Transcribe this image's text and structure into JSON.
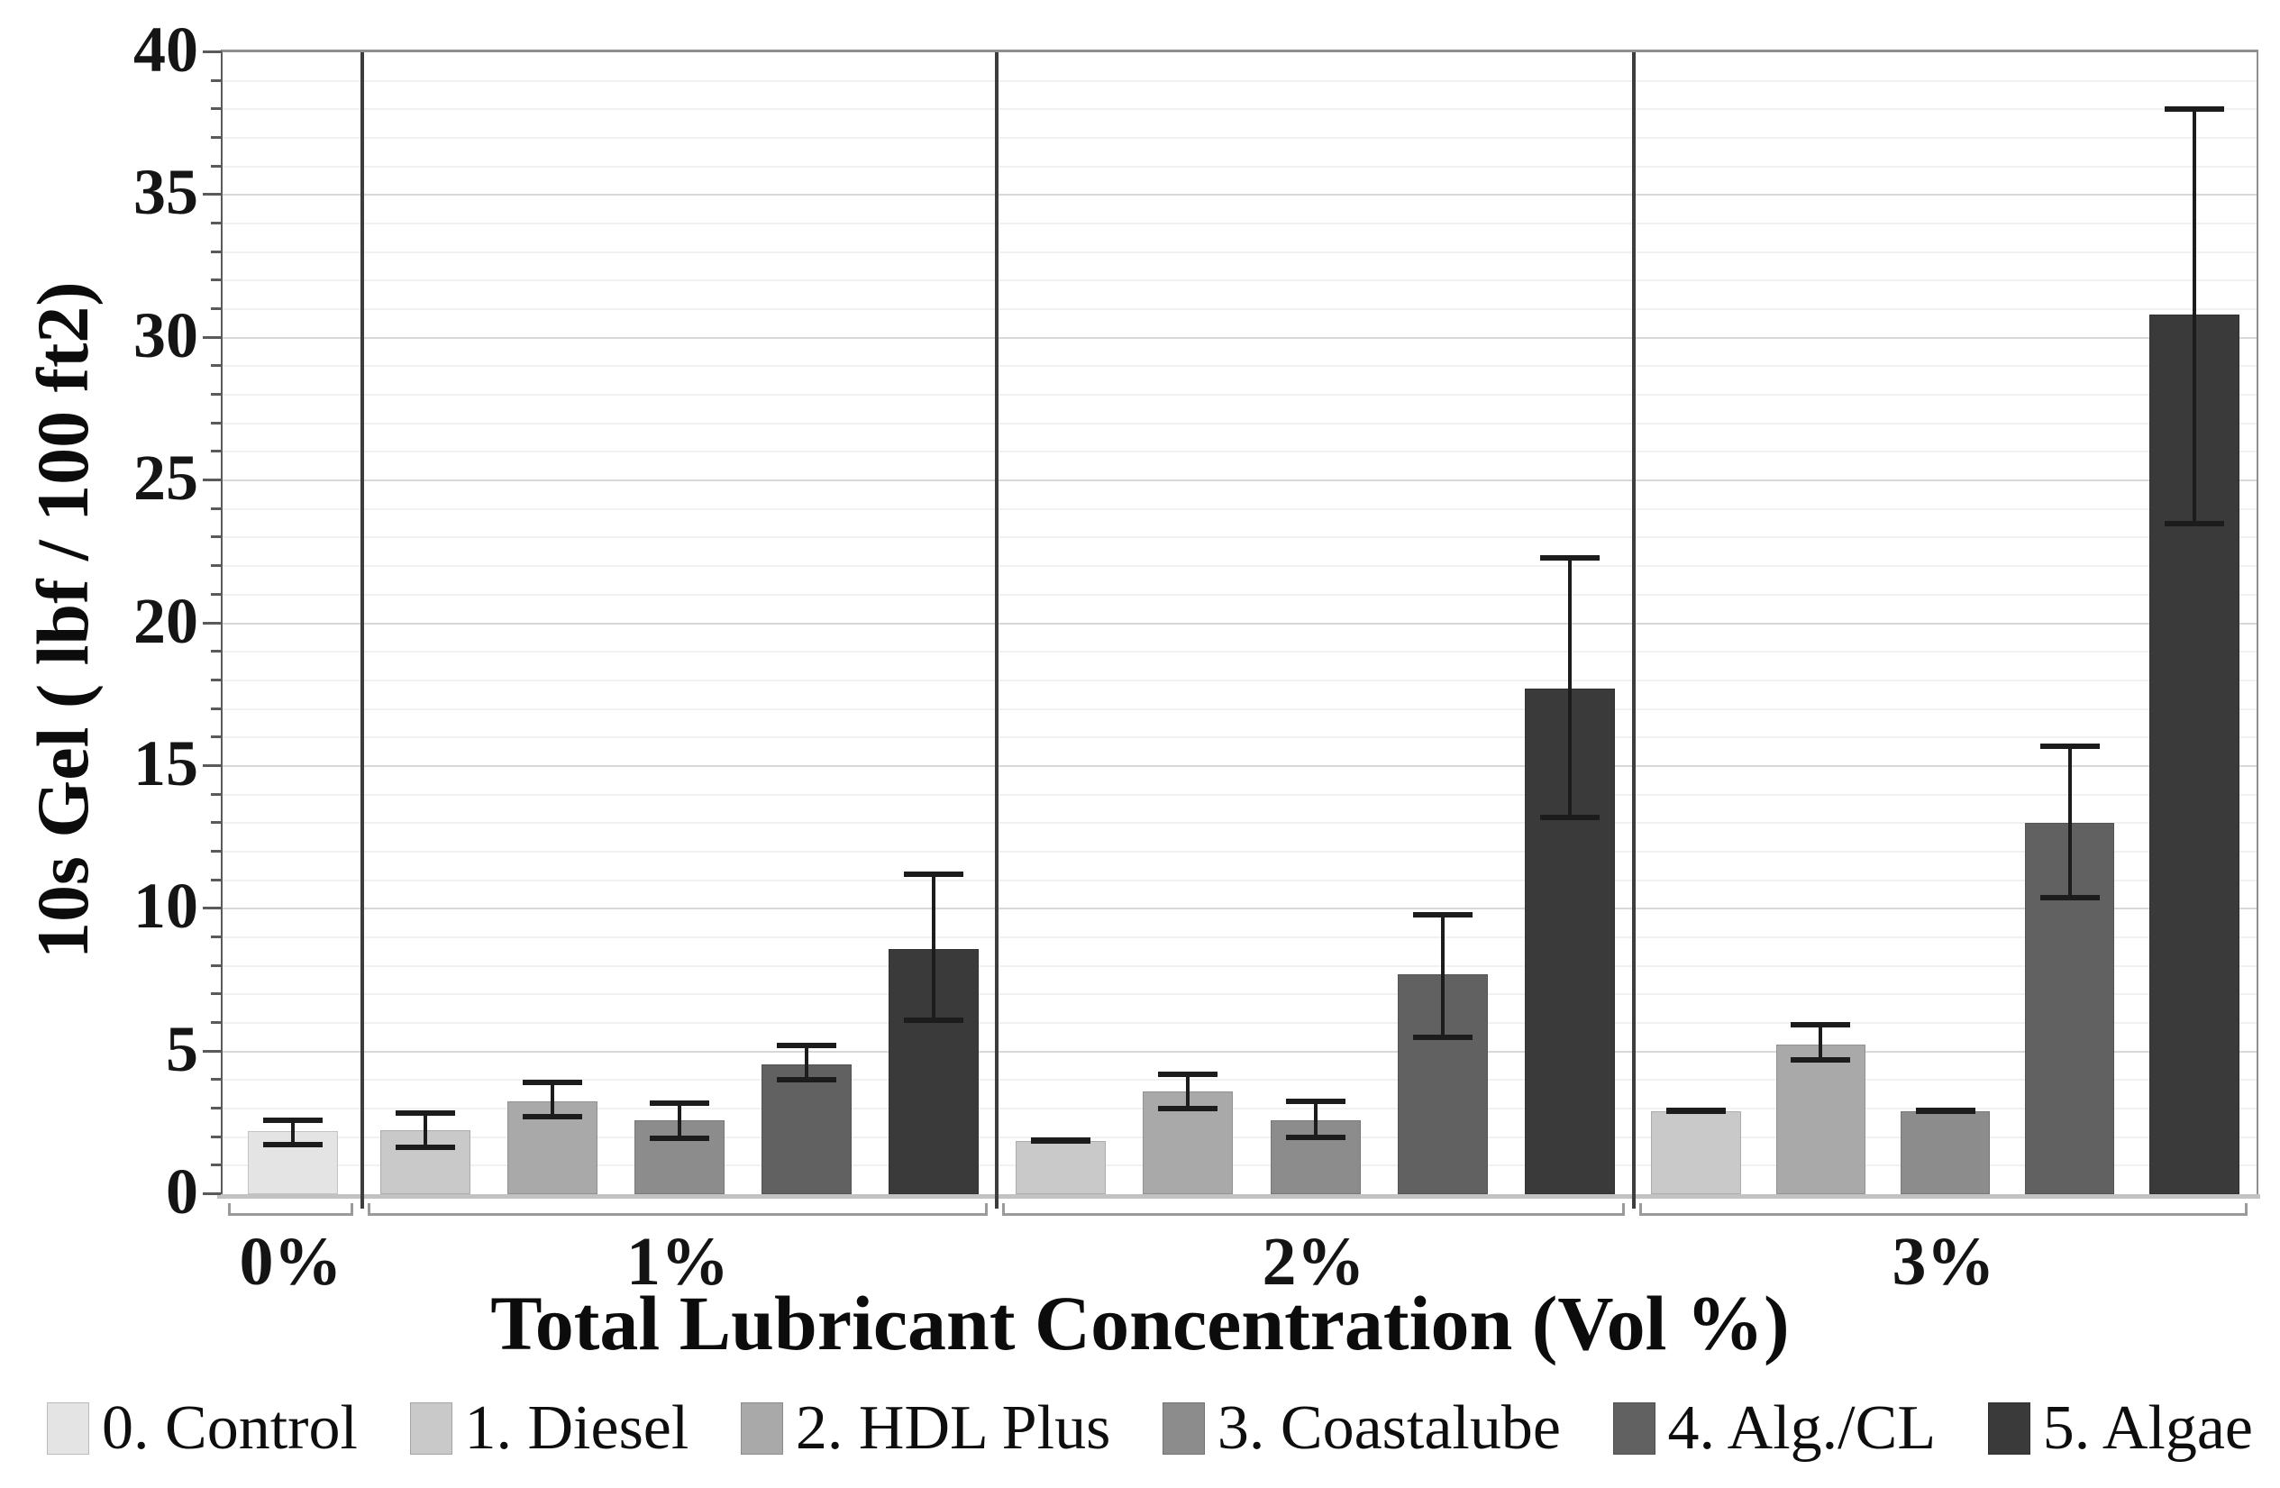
{
  "chart_data": {
    "type": "bar",
    "title": "",
    "xlabel": "Total Lubricant Concentration (Vol %)",
    "ylabel": "10s Gel ( lbf / 100 ft2)",
    "ylim": [
      0,
      40
    ],
    "y_major_step": 5,
    "y_minor_step": 1,
    "grid": "on",
    "legend_position": "bottom",
    "y_ticks": [
      "0",
      "5",
      "10",
      "15",
      "20",
      "25",
      "30",
      "35",
      "40"
    ],
    "categories": [
      "0%",
      "1%",
      "2%",
      "3%"
    ],
    "series": [
      {
        "name": "0. Control",
        "color": "#e4e4e4",
        "values": [
          2.2,
          null,
          null,
          null
        ],
        "err_low": [
          1.75,
          null,
          null,
          null
        ],
        "err_high": [
          2.6,
          null,
          null,
          null
        ]
      },
      {
        "name": "1. Diesel",
        "color": "#c9c9c9",
        "values": [
          null,
          2.25,
          1.85,
          2.9
        ],
        "err_low": [
          null,
          1.65,
          1.85,
          2.9
        ],
        "err_high": [
          null,
          2.85,
          1.9,
          2.95
        ]
      },
      {
        "name": "2. HDL Plus",
        "color": "#a9a9a9",
        "values": [
          null,
          3.25,
          3.6,
          5.25
        ],
        "err_low": [
          null,
          2.7,
          3.0,
          4.7
        ],
        "err_high": [
          null,
          3.9,
          4.2,
          5.95
        ]
      },
      {
        "name": "3. Coastalube",
        "color": "#8c8c8c",
        "values": [
          null,
          2.6,
          2.6,
          2.9
        ],
        "err_low": [
          null,
          1.95,
          2.0,
          2.9
        ],
        "err_high": [
          null,
          3.2,
          3.25,
          2.95
        ]
      },
      {
        "name": "4. Alg./CL",
        "color": "#616161",
        "values": [
          null,
          4.55,
          7.7,
          13.0
        ],
        "err_low": [
          null,
          4.0,
          5.5,
          10.4
        ],
        "err_high": [
          null,
          5.2,
          9.8,
          15.7
        ]
      },
      {
        "name": "5. Algae",
        "color": "#3a3a3a",
        "values": [
          null,
          8.6,
          17.7,
          30.8
        ],
        "err_low": [
          null,
          6.1,
          13.2,
          23.5
        ],
        "err_high": [
          null,
          11.2,
          22.3,
          38.0
        ]
      }
    ]
  }
}
